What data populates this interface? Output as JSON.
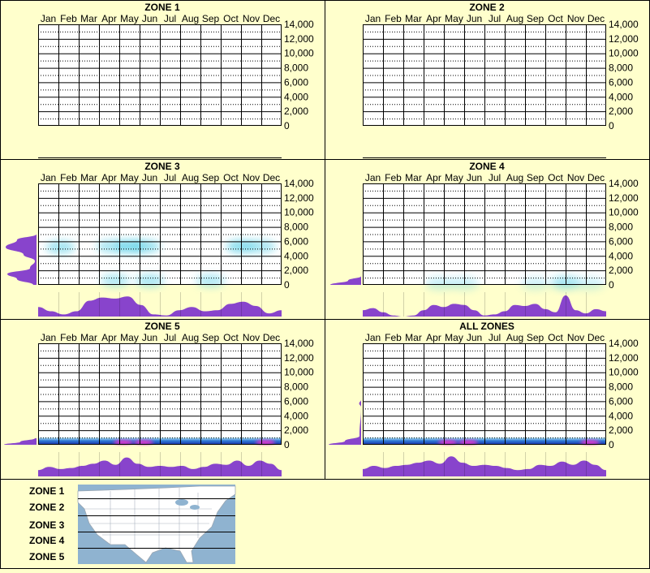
{
  "months": [
    "Jan",
    "Feb",
    "Mar",
    "Apr",
    "May",
    "Jun",
    "Jul",
    "Aug",
    "Sep",
    "Oct",
    "Nov",
    "Dec"
  ],
  "y_ticks": [
    "14,000",
    "12,000",
    "10,000",
    "8,000",
    "6,000",
    "4,000",
    "2,000",
    "0"
  ],
  "colors": {
    "background": "#ffffcc",
    "profile": "#8844cc",
    "heat_low": "#66d3e8",
    "heat_high": "#ff33cc"
  },
  "chart_data": [
    {
      "type": "heatmap",
      "title": "ZONE 1",
      "x_categories": [
        "Jan",
        "Feb",
        "Mar",
        "Apr",
        "May",
        "Jun",
        "Jul",
        "Aug",
        "Sep",
        "Oct",
        "Nov",
        "Dec"
      ],
      "ylim": [
        0,
        14000
      ],
      "y_ticks": [
        0,
        2000,
        4000,
        6000,
        8000,
        10000,
        12000,
        14000
      ],
      "blobs": [],
      "month_profile": [],
      "elev_profile": []
    },
    {
      "type": "heatmap",
      "title": "ZONE 2",
      "x_categories": [
        "Jan",
        "Feb",
        "Mar",
        "Apr",
        "May",
        "Jun",
        "Jul",
        "Aug",
        "Sep",
        "Oct",
        "Nov",
        "Dec"
      ],
      "ylim": [
        0,
        14000
      ],
      "y_ticks": [
        0,
        2000,
        4000,
        6000,
        8000,
        10000,
        12000,
        14000
      ],
      "blobs": [],
      "month_profile": [],
      "elev_profile": []
    },
    {
      "type": "heatmap",
      "title": "ZONE 3",
      "x_categories": [
        "Jan",
        "Feb",
        "Mar",
        "Apr",
        "May",
        "Jun",
        "Jul",
        "Aug",
        "Sep",
        "Oct",
        "Nov",
        "Dec"
      ],
      "ylim": [
        0,
        14000
      ],
      "y_ticks": [
        0,
        2000,
        4000,
        6000,
        8000,
        10000,
        12000,
        14000
      ],
      "blobs": [
        {
          "month": 1.1,
          "elev": 5200,
          "intensity": 0.6
        },
        {
          "month": 3.6,
          "elev": 5300,
          "intensity": 0.55
        },
        {
          "month": 4.5,
          "elev": 5300,
          "intensity": 0.8
        },
        {
          "month": 5.3,
          "elev": 5300,
          "intensity": 0.65
        },
        {
          "month": 10.0,
          "elev": 5300,
          "intensity": 0.75
        },
        {
          "month": 11.0,
          "elev": 5300,
          "intensity": 0.55
        },
        {
          "month": 3.8,
          "elev": 600,
          "intensity": 0.5
        },
        {
          "month": 5.5,
          "elev": 600,
          "intensity": 0.55
        },
        {
          "month": 8.5,
          "elev": 600,
          "intensity": 0.5
        }
      ],
      "month_profile": [
        0.45,
        0.25,
        0.1,
        0.25,
        0.75,
        0.9,
        0.85,
        0.95,
        0.55,
        0.1,
        0.05,
        0.3,
        0.45,
        0.25,
        0.3,
        0.6,
        0.7,
        0.5,
        0.15,
        0.3
      ],
      "elev_profile": [
        {
          "elev": 0,
          "value": 0.1
        },
        {
          "elev": 800,
          "value": 0.6
        },
        {
          "elev": 1500,
          "value": 0.9
        },
        {
          "elev": 2300,
          "value": 0.2
        },
        {
          "elev": 3300,
          "value": 0.05
        },
        {
          "elev": 4200,
          "value": 0.4
        },
        {
          "elev": 5200,
          "value": 0.95
        },
        {
          "elev": 6200,
          "value": 0.6
        },
        {
          "elev": 7000,
          "value": 0.0
        }
      ]
    },
    {
      "type": "heatmap",
      "title": "ZONE 4",
      "x_categories": [
        "Jan",
        "Feb",
        "Mar",
        "Apr",
        "May",
        "Jun",
        "Jul",
        "Aug",
        "Sep",
        "Oct",
        "Nov",
        "Dec"
      ],
      "ylim": [
        0,
        14000
      ],
      "y_ticks": [
        0,
        2000,
        4000,
        6000,
        8000,
        10000,
        12000,
        14000
      ],
      "blobs": [
        {
          "month": 3.8,
          "elev": 200,
          "intensity": 0.35
        },
        {
          "month": 5.0,
          "elev": 200,
          "intensity": 0.35
        },
        {
          "month": 8.5,
          "elev": 200,
          "intensity": 0.3
        },
        {
          "month": 10.0,
          "elev": 300,
          "intensity": 0.6
        },
        {
          "month": 11.2,
          "elev": 200,
          "intensity": 0.3
        }
      ],
      "month_profile": [
        0.3,
        0.4,
        0.2,
        0.05,
        0.0,
        0.05,
        0.3,
        0.55,
        0.45,
        0.6,
        0.55,
        0.3,
        0.05,
        0.1,
        0.25,
        0.55,
        0.5,
        0.6,
        0.35,
        0.2,
        1.0,
        0.3,
        0.15,
        0.35,
        0.25
      ],
      "elev_profile": [
        {
          "elev": 0,
          "value": 0.95
        },
        {
          "elev": 600,
          "value": 0.4
        },
        {
          "elev": 1200,
          "value": 0.0
        }
      ]
    },
    {
      "type": "heatmap",
      "title": "ZONE 5",
      "x_categories": [
        "Jan",
        "Feb",
        "Mar",
        "Apr",
        "May",
        "Jun",
        "Jul",
        "Aug",
        "Sep",
        "Oct",
        "Nov",
        "Dec"
      ],
      "ylim": [
        0,
        14000
      ],
      "y_ticks": [
        0,
        2000,
        4000,
        6000,
        8000,
        10000,
        12000,
        14000
      ],
      "band": {
        "elev_top": 1000,
        "hot_months": [
          4.2,
          5.2,
          11.2
        ]
      },
      "month_profile": [
        0.3,
        0.45,
        0.35,
        0.4,
        0.5,
        0.6,
        0.75,
        0.55,
        0.9,
        0.6,
        0.45,
        0.5,
        0.45,
        0.5,
        0.35,
        0.45,
        0.6,
        0.55,
        0.75,
        0.5,
        0.75,
        0.6,
        0.3
      ],
      "elev_profile": [
        {
          "elev": 0,
          "value": 1.0
        },
        {
          "elev": 400,
          "value": 0.5
        },
        {
          "elev": 900,
          "value": 0.05
        }
      ]
    },
    {
      "type": "heatmap",
      "title": "ALL ZONES",
      "x_categories": [
        "Jan",
        "Feb",
        "Mar",
        "Apr",
        "May",
        "Jun",
        "Jul",
        "Aug",
        "Sep",
        "Oct",
        "Nov",
        "Dec"
      ],
      "ylim": [
        0,
        14000
      ],
      "y_ticks": [
        0,
        2000,
        4000,
        6000,
        8000,
        10000,
        12000,
        14000
      ],
      "band": {
        "elev_top": 1000,
        "hot_months": [
          4.2,
          5.2,
          11.2
        ]
      },
      "month_profile": [
        0.35,
        0.5,
        0.4,
        0.5,
        0.55,
        0.65,
        0.75,
        0.6,
        0.95,
        0.65,
        0.5,
        0.55,
        0.5,
        0.4,
        0.3,
        0.35,
        0.55,
        0.5,
        0.7,
        0.55,
        0.75,
        0.55,
        0.3
      ],
      "elev_profile": [
        {
          "elev": 0,
          "value": 1.0
        },
        {
          "elev": 500,
          "value": 0.5
        },
        {
          "elev": 1200,
          "value": 0.05
        },
        {
          "elev": 5200,
          "value": 0.0
        },
        {
          "elev": 5700,
          "value": 0.06
        },
        {
          "elev": 6200,
          "value": 0.0
        }
      ]
    }
  ],
  "legend": {
    "zones": [
      "ZONE 1",
      "ZONE 2",
      "ZONE 3",
      "ZONE 4",
      "ZONE 5"
    ]
  }
}
